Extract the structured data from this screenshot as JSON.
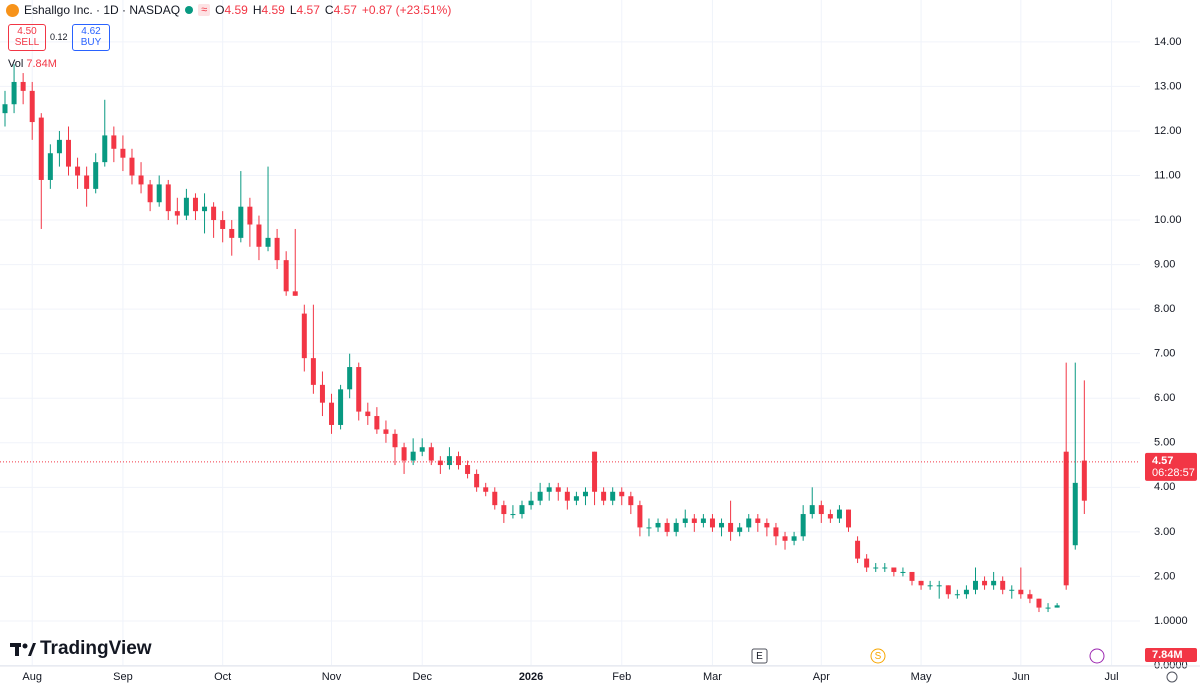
{
  "header": {
    "title": "Eshallgo Inc. · 1D · NASDAQ",
    "ohlc_labels": [
      "O",
      "H",
      "L",
      "C"
    ],
    "ohlc_values": [
      4.59,
      4.59,
      4.57,
      4.57
    ],
    "change": "+0.87 (+23.51%)"
  },
  "trade": {
    "sell_price": "4.50",
    "sell_label": "SELL",
    "spread": "0.12",
    "buy_price": "4.62",
    "buy_label": "BUY"
  },
  "volume": {
    "label": "Vol",
    "value": "7.84M"
  },
  "brand": "TradingView",
  "markers": [
    "E",
    "S"
  ],
  "chart_data": {
    "type": "candlestick",
    "up_color": "#089981",
    "down_color": "#f23645",
    "grid": true,
    "ylim": [
      0,
      14.94
    ],
    "yticks": [
      {
        "value": 14,
        "label": "14.00"
      },
      {
        "value": 13,
        "label": "13.00"
      },
      {
        "value": 12,
        "label": "12.00"
      },
      {
        "value": 11,
        "label": "11.00"
      },
      {
        "value": 10,
        "label": "10.00"
      },
      {
        "value": 9,
        "label": "9.00"
      },
      {
        "value": 8,
        "label": "8.00"
      },
      {
        "value": 7,
        "label": "7.00"
      },
      {
        "value": 6,
        "label": "6.00"
      },
      {
        "value": 5,
        "label": "5.00"
      },
      {
        "value": 4,
        "label": "4.00"
      },
      {
        "value": 3,
        "label": "3.00"
      },
      {
        "value": 2,
        "label": "2.00"
      },
      {
        "value": 1,
        "label": "1.0000"
      },
      {
        "value": 0,
        "label": "0.0000"
      }
    ],
    "last_price": 4.57,
    "countdown": "06:28:57",
    "volume_tag": "7.84M",
    "categories": [
      null,
      null,
      null,
      "Aug",
      null,
      null,
      null,
      null,
      null,
      null,
      null,
      null,
      null,
      "Sep",
      null,
      null,
      null,
      null,
      null,
      null,
      null,
      null,
      null,
      null,
      "Oct",
      null,
      null,
      null,
      null,
      null,
      null,
      null,
      null,
      null,
      null,
      null,
      "Nov",
      null,
      null,
      null,
      null,
      null,
      null,
      null,
      null,
      null,
      "Dec",
      null,
      null,
      null,
      null,
      null,
      null,
      null,
      null,
      null,
      null,
      null,
      "2026",
      null,
      null,
      null,
      null,
      null,
      null,
      null,
      null,
      null,
      "Feb",
      null,
      null,
      null,
      null,
      null,
      null,
      null,
      null,
      null,
      "Mar",
      null,
      null,
      null,
      null,
      null,
      null,
      null,
      null,
      null,
      null,
      null,
      "Apr",
      null,
      null,
      null,
      null,
      null,
      null,
      null,
      null,
      null,
      null,
      "May",
      null,
      null,
      null,
      null,
      null,
      null,
      null,
      null,
      null,
      null,
      "Jun",
      null,
      null,
      null,
      null,
      null,
      null,
      null,
      null,
      null,
      "Jul"
    ],
    "ohlc": [
      [
        12.4,
        12.9,
        12.1,
        12.6
      ],
      [
        12.6,
        13.5,
        12.4,
        13.1
      ],
      [
        13.1,
        13.3,
        12.6,
        12.9
      ],
      [
        12.9,
        13.1,
        11.8,
        12.2
      ],
      [
        12.3,
        12.4,
        9.8,
        10.9
      ],
      [
        10.9,
        11.7,
        10.7,
        11.5
      ],
      [
        11.5,
        12.0,
        11.2,
        11.8
      ],
      [
        11.8,
        12.1,
        11.0,
        11.2
      ],
      [
        11.2,
        11.4,
        10.7,
        11.0
      ],
      [
        11.0,
        11.2,
        10.3,
        10.7
      ],
      [
        10.7,
        11.5,
        10.6,
        11.3
      ],
      [
        11.3,
        12.7,
        11.2,
        11.9
      ],
      [
        11.9,
        12.1,
        11.3,
        11.6
      ],
      [
        11.6,
        11.9,
        11.1,
        11.4
      ],
      [
        11.4,
        11.6,
        10.8,
        11.0
      ],
      [
        11.0,
        11.3,
        10.6,
        10.8
      ],
      [
        10.8,
        10.9,
        10.2,
        10.4
      ],
      [
        10.4,
        11.0,
        10.3,
        10.8
      ],
      [
        10.8,
        10.9,
        10.0,
        10.2
      ],
      [
        10.2,
        10.5,
        9.9,
        10.1
      ],
      [
        10.1,
        10.7,
        10.0,
        10.5
      ],
      [
        10.5,
        10.6,
        10.0,
        10.2
      ],
      [
        10.2,
        10.6,
        9.7,
        10.3
      ],
      [
        10.3,
        10.4,
        9.6,
        10.0
      ],
      [
        10.0,
        10.2,
        9.5,
        9.8
      ],
      [
        9.8,
        10.0,
        9.2,
        9.6
      ],
      [
        9.6,
        11.1,
        9.5,
        10.3
      ],
      [
        10.3,
        10.5,
        9.4,
        9.9
      ],
      [
        9.9,
        10.1,
        9.1,
        9.4
      ],
      [
        9.4,
        11.2,
        9.3,
        9.6
      ],
      [
        9.6,
        9.8,
        8.9,
        9.1
      ],
      [
        9.1,
        9.3,
        8.3,
        8.4
      ],
      [
        8.4,
        9.8,
        8.3,
        8.3
      ],
      [
        7.9,
        8.1,
        6.6,
        6.9
      ],
      [
        6.9,
        8.1,
        6.1,
        6.3
      ],
      [
        6.3,
        6.6,
        5.6,
        5.9
      ],
      [
        5.9,
        6.1,
        5.2,
        5.4
      ],
      [
        5.4,
        6.3,
        5.3,
        6.2
      ],
      [
        6.2,
        7.0,
        6.0,
        6.7
      ],
      [
        6.7,
        6.8,
        5.5,
        5.7
      ],
      [
        5.7,
        5.9,
        5.4,
        5.6
      ],
      [
        5.6,
        5.8,
        5.2,
        5.3
      ],
      [
        5.3,
        5.5,
        5.0,
        5.2
      ],
      [
        5.2,
        5.3,
        4.5,
        4.9
      ],
      [
        4.9,
        5.0,
        4.3,
        4.6
      ],
      [
        4.6,
        5.1,
        4.5,
        4.8
      ],
      [
        4.8,
        5.1,
        4.7,
        4.9
      ],
      [
        4.9,
        5.0,
        4.5,
        4.6
      ],
      [
        4.6,
        4.7,
        4.3,
        4.5
      ],
      [
        4.5,
        4.9,
        4.4,
        4.7
      ],
      [
        4.7,
        4.8,
        4.4,
        4.5
      ],
      [
        4.5,
        4.6,
        4.2,
        4.3
      ],
      [
        4.3,
        4.4,
        3.9,
        4.0
      ],
      [
        4.0,
        4.1,
        3.8,
        3.9
      ],
      [
        3.9,
        4.0,
        3.5,
        3.6
      ],
      [
        3.6,
        3.7,
        3.2,
        3.4
      ],
      [
        3.4,
        3.6,
        3.3,
        3.4
      ],
      [
        3.4,
        3.7,
        3.3,
        3.6
      ],
      [
        3.6,
        3.9,
        3.5,
        3.7
      ],
      [
        3.7,
        4.1,
        3.6,
        3.9
      ],
      [
        3.9,
        4.1,
        3.7,
        4.0
      ],
      [
        4.0,
        4.1,
        3.7,
        3.9
      ],
      [
        3.9,
        4.0,
        3.5,
        3.7
      ],
      [
        3.7,
        3.9,
        3.6,
        3.8
      ],
      [
        3.8,
        4.0,
        3.6,
        3.9
      ],
      [
        4.8,
        4.8,
        3.6,
        3.9
      ],
      [
        3.9,
        4.0,
        3.6,
        3.7
      ],
      [
        3.7,
        4.0,
        3.6,
        3.9
      ],
      [
        3.9,
        4.0,
        3.6,
        3.8
      ],
      [
        3.8,
        3.9,
        3.4,
        3.6
      ],
      [
        3.6,
        3.7,
        2.9,
        3.1
      ],
      [
        3.1,
        3.3,
        2.9,
        3.1
      ],
      [
        3.1,
        3.3,
        3.0,
        3.2
      ],
      [
        3.2,
        3.3,
        2.9,
        3.0
      ],
      [
        3.0,
        3.3,
        2.9,
        3.2
      ],
      [
        3.2,
        3.5,
        3.1,
        3.3
      ],
      [
        3.3,
        3.4,
        3.0,
        3.2
      ],
      [
        3.2,
        3.4,
        3.1,
        3.3
      ],
      [
        3.3,
        3.4,
        3.0,
        3.1
      ],
      [
        3.1,
        3.3,
        2.9,
        3.2
      ],
      [
        3.2,
        3.7,
        2.8,
        3.0
      ],
      [
        3.0,
        3.2,
        2.9,
        3.1
      ],
      [
        3.1,
        3.4,
        3.0,
        3.3
      ],
      [
        3.3,
        3.4,
        3.0,
        3.2
      ],
      [
        3.2,
        3.3,
        2.9,
        3.1
      ],
      [
        3.1,
        3.2,
        2.7,
        2.9
      ],
      [
        2.9,
        3.0,
        2.6,
        2.8
      ],
      [
        2.8,
        3.0,
        2.7,
        2.9
      ],
      [
        2.9,
        3.6,
        2.8,
        3.4
      ],
      [
        3.4,
        4.0,
        3.3,
        3.6
      ],
      [
        3.6,
        3.7,
        3.2,
        3.4
      ],
      [
        3.4,
        3.5,
        3.2,
        3.3
      ],
      [
        3.3,
        3.6,
        3.2,
        3.5
      ],
      [
        3.5,
        3.5,
        3.0,
        3.1
      ],
      [
        2.8,
        2.9,
        2.3,
        2.4
      ],
      [
        2.4,
        2.5,
        2.1,
        2.2
      ],
      [
        2.2,
        2.3,
        2.1,
        2.2
      ],
      [
        2.2,
        2.3,
        2.1,
        2.2
      ],
      [
        2.2,
        2.2,
        2.0,
        2.1
      ],
      [
        2.1,
        2.2,
        2.0,
        2.1
      ],
      [
        2.1,
        2.1,
        1.8,
        1.9
      ],
      [
        1.9,
        1.9,
        1.7,
        1.8
      ],
      [
        1.8,
        1.9,
        1.7,
        1.8
      ],
      [
        1.8,
        1.9,
        1.5,
        1.8
      ],
      [
        1.8,
        1.8,
        1.5,
        1.6
      ],
      [
        1.6,
        1.7,
        1.5,
        1.6
      ],
      [
        1.6,
        1.8,
        1.5,
        1.7
      ],
      [
        1.7,
        2.2,
        1.6,
        1.9
      ],
      [
        1.9,
        2.0,
        1.7,
        1.8
      ],
      [
        1.8,
        2.1,
        1.7,
        1.9
      ],
      [
        1.9,
        2.0,
        1.6,
        1.7
      ],
      [
        1.7,
        1.8,
        1.5,
        1.7
      ],
      [
        1.7,
        2.2,
        1.5,
        1.6
      ],
      [
        1.6,
        1.7,
        1.4,
        1.5
      ],
      [
        1.5,
        1.5,
        1.2,
        1.3
      ],
      [
        1.3,
        1.4,
        1.2,
        1.3
      ],
      [
        1.3,
        1.4,
        1.3,
        1.35
      ],
      [
        4.8,
        6.8,
        1.7,
        1.8
      ],
      [
        2.7,
        6.8,
        2.6,
        4.1
      ],
      [
        4.6,
        6.4,
        3.4,
        3.7
      ],
      null,
      null,
      null
    ]
  }
}
